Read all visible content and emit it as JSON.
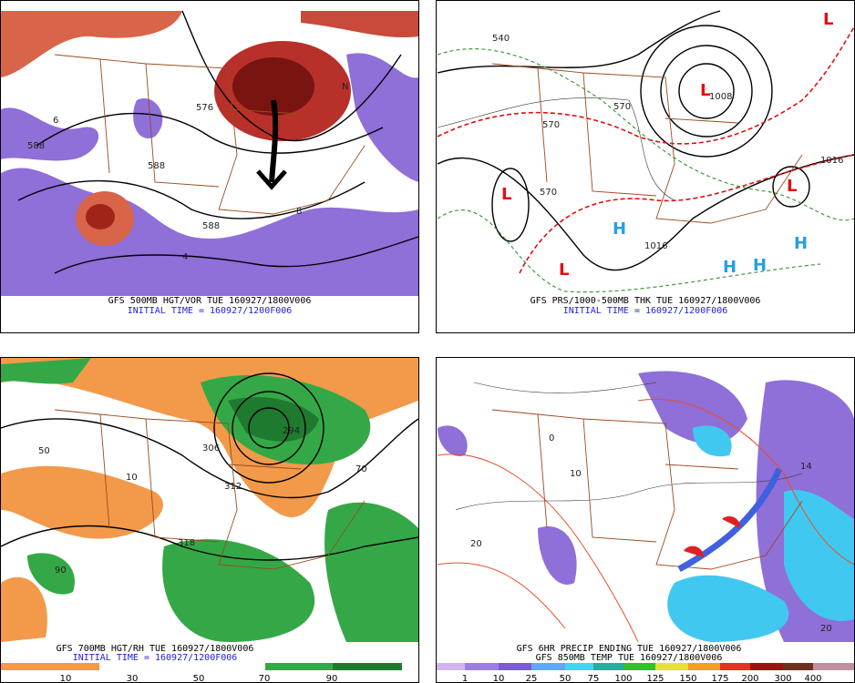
{
  "panels": [
    {
      "caption": [
        "GFS 500MB HGT/VOR TUE 160927/1800V006",
        "INITIAL TIME = 160927/1200F006"
      ],
      "labels": [
        "576",
        "588",
        "588",
        "588",
        "6",
        "8",
        "N",
        "4"
      ]
    },
    {
      "caption": [
        "GFS PRS/1000-500MB THK TUE 160927/1800V006",
        "INITIAL TIME = 160927/1200F006"
      ],
      "labels": [
        "L",
        "L",
        "L",
        "L",
        "L",
        "H",
        "H",
        "H",
        "H",
        "1016",
        "1016",
        "1008",
        "570",
        "570",
        "570",
        "540"
      ]
    },
    {
      "caption": [
        "GFS 700MB HGT/RH TUE 160927/1800V006",
        "INITIAL TIME = 160927/1200F006"
      ],
      "labels": [
        "306",
        "312",
        "318",
        "294",
        "50",
        "90",
        "10",
        "70"
      ],
      "colorbar": [
        "10",
        "30",
        "50",
        "70",
        "90"
      ]
    },
    {
      "caption": [
        "GFS 6HR PRECIP ENDING TUE 160927/1800V006",
        "GFS 850MB TEMP TUE 160927/1800V006"
      ],
      "labels": [
        "0",
        "20",
        "10",
        "20",
        "14"
      ],
      "colorbar": [
        "1",
        "10",
        "25",
        "50",
        "75",
        "100",
        "125",
        "150",
        "175",
        "200",
        "300",
        "400"
      ]
    }
  ]
}
